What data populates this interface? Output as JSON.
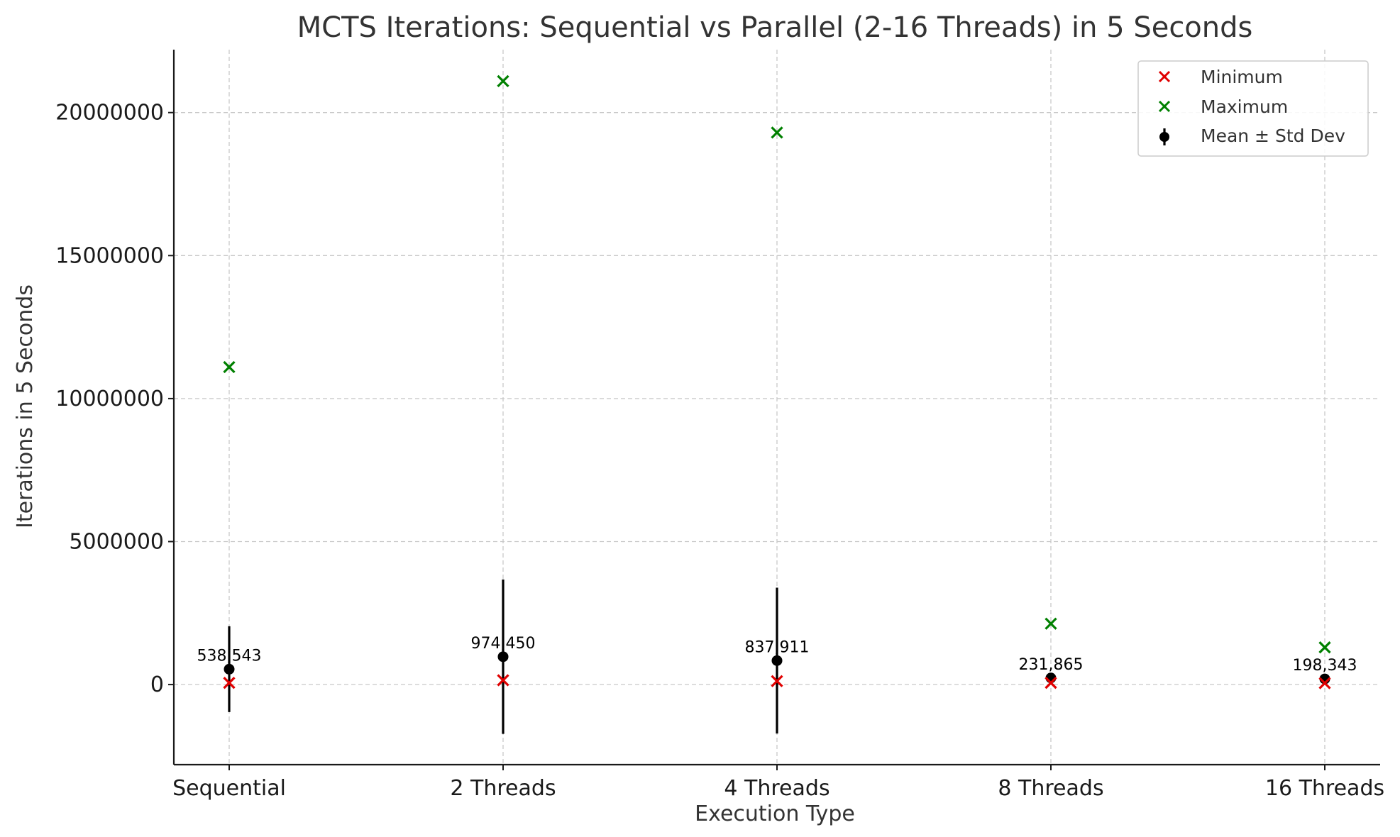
{
  "chart_data": {
    "type": "scatter",
    "title": "MCTS Iterations: Sequential vs Parallel (2-16 Threads) in 5 Seconds",
    "xlabel": "Execution Type",
    "ylabel": "Iterations in 5 Seconds",
    "categories": [
      "Sequential",
      "2 Threads",
      "4 Threads",
      "8 Threads",
      "16 Threads"
    ],
    "ylim": [
      -2800000,
      22200000
    ],
    "yticks": [
      0,
      5000000,
      10000000,
      15000000,
      20000000
    ],
    "ytick_labels": [
      "0",
      "5000000",
      "10000000",
      "15000000",
      "20000000"
    ],
    "grid": true,
    "legend_position": "top-right",
    "series": [
      {
        "name": "Minimum",
        "marker": "x",
        "color": "#e00000",
        "values": [
          60000,
          150000,
          120000,
          60000,
          50000
        ]
      },
      {
        "name": "Maximum",
        "marker": "x",
        "color": "#008000",
        "values": [
          11100000,
          21100000,
          19300000,
          2130000,
          1300000
        ]
      },
      {
        "name": "Mean ± Std Dev",
        "marker": "errorbar",
        "color": "#000000",
        "values": [
          538543,
          974450,
          837911,
          231865,
          198343
        ],
        "std": [
          1500000,
          2700000,
          2550000,
          150000,
          120000
        ],
        "data_labels": [
          "538,543",
          "974,450",
          "837,911",
          "231,865",
          "198,343"
        ]
      }
    ]
  }
}
